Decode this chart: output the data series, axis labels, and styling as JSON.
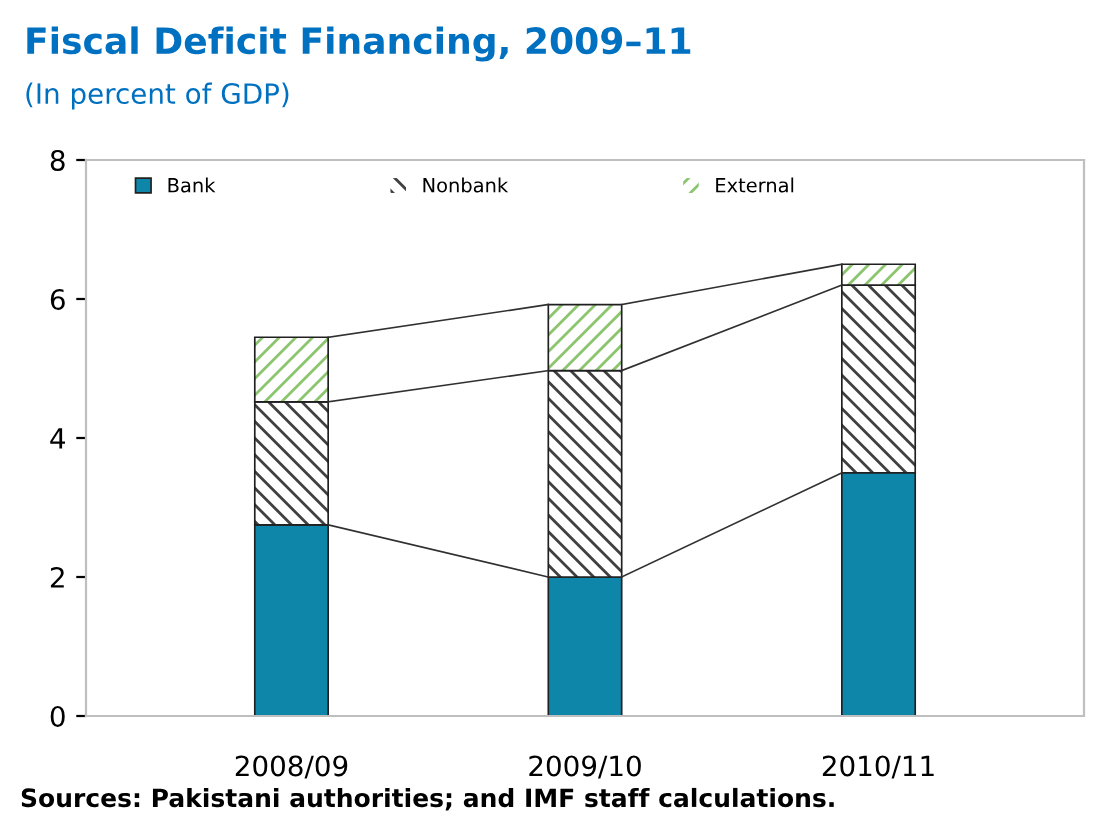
{
  "chart_data": {
    "type": "bar",
    "title": "Fiscal Deficit Financing, 2009–11",
    "subtitle": "(In percent of GDP)",
    "categories": [
      "2008/09",
      "2009/10",
      "2010/11"
    ],
    "stacked": true,
    "series": [
      {
        "name": "Bank",
        "color": "#0e86aa",
        "values": [
          2.75,
          2.0,
          3.5
        ]
      },
      {
        "name": "Nonbank",
        "color": "#404040",
        "values": [
          1.77,
          2.97,
          2.7
        ]
      },
      {
        "name": "External",
        "color": "#8cc56e",
        "values": [
          0.93,
          0.95,
          0.3
        ]
      }
    ],
    "ylim": [
      0,
      8
    ],
    "yticks": [
      0,
      2,
      4,
      6,
      8
    ],
    "grid": false,
    "legend": "top",
    "annotations": [
      "Sources: Pakistani authorities; and IMF staff calculations."
    ]
  }
}
